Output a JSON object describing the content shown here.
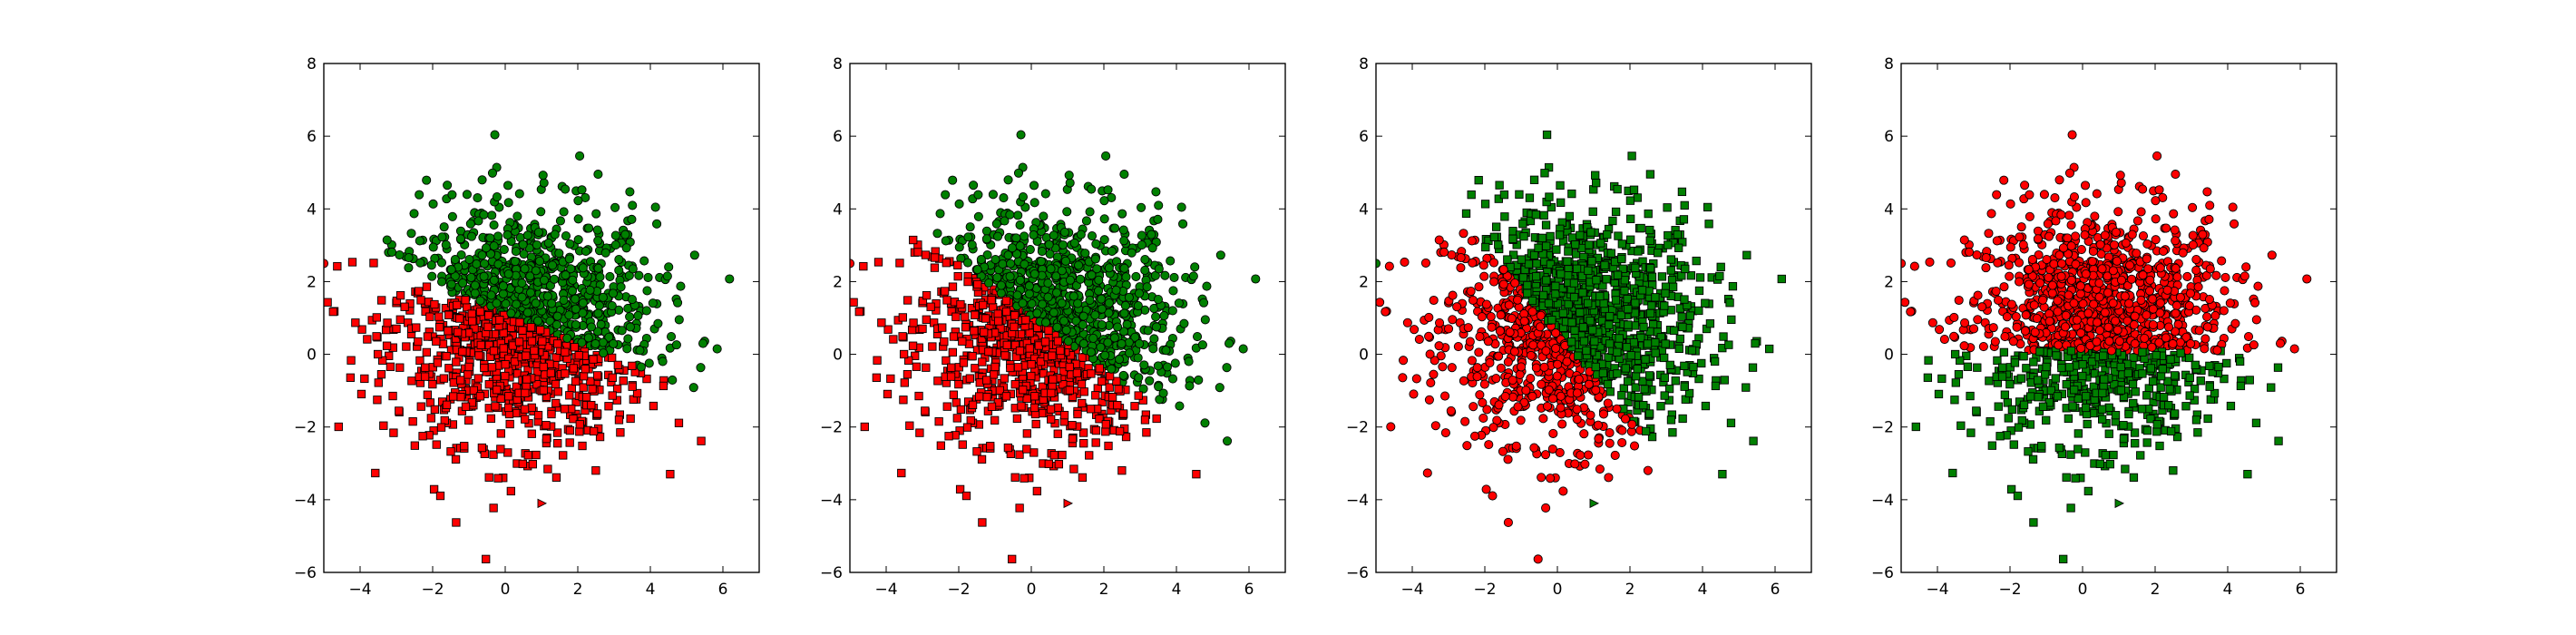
{
  "chart_data": [
    {
      "type": "scatter",
      "title": "",
      "xlabel": "",
      "ylabel": "",
      "xlim": [
        -5,
        7
      ],
      "ylim": [
        -6,
        8
      ],
      "x_ticks": [
        "−4",
        "−2",
        "0",
        "2",
        "4",
        "6"
      ],
      "y_ticks": [
        "−6",
        "−4",
        "−2",
        "0",
        "2",
        "4",
        "6",
        "8"
      ],
      "grid": false,
      "legend": "none",
      "series": [
        {
          "color": "#ff0000",
          "marker": "square",
          "region": "below boundary"
        },
        {
          "color": "#008000",
          "marker": "circle",
          "region": "above boundary"
        }
      ],
      "boundary": {
        "x1": -2.5,
        "y1": 2.1,
        "x2": 3.5,
        "y2": -0.3
      },
      "outliers": [
        {
          "x": -5,
          "y": 2.5,
          "color": "#ff0000",
          "marker": "circle"
        },
        {
          "x": 1.0,
          "y": -4.1,
          "color": "#ff0000",
          "marker": "triangle"
        }
      ],
      "cluster": {
        "center": [
          0.5,
          0.8
        ],
        "spread": [
          1.8,
          1.6
        ]
      }
    },
    {
      "type": "scatter",
      "title": "",
      "xlabel": "",
      "ylabel": "",
      "xlim": [
        -5,
        7
      ],
      "ylim": [
        -6,
        8
      ],
      "x_ticks": [
        "−4",
        "−2",
        "0",
        "2",
        "4",
        "6"
      ],
      "y_ticks": [
        "−6",
        "−4",
        "−2",
        "0",
        "2",
        "4",
        "6",
        "8"
      ],
      "grid": false,
      "legend": "none",
      "series": [
        {
          "color": "#ff0000",
          "marker": "square",
          "region": "below boundary"
        },
        {
          "color": "#008000",
          "marker": "circle",
          "region": "above boundary"
        }
      ],
      "boundary": {
        "x1": -2.0,
        "y1": 2.5,
        "x2": 3.5,
        "y2": -1.5
      },
      "outliers": [
        {
          "x": -5,
          "y": 2.5,
          "color": "#ff0000",
          "marker": "circle"
        },
        {
          "x": 1.0,
          "y": -4.1,
          "color": "#ff0000",
          "marker": "triangle"
        }
      ],
      "cluster": {
        "center": [
          0.5,
          0.8
        ],
        "spread": [
          1.8,
          1.6
        ]
      }
    },
    {
      "type": "scatter",
      "title": "",
      "xlabel": "",
      "ylabel": "",
      "xlim": [
        -5,
        7
      ],
      "ylim": [
        -6,
        8
      ],
      "x_ticks": [
        "−4",
        "−2",
        "0",
        "2",
        "4",
        "6"
      ],
      "y_ticks": [
        "−6",
        "−4",
        "−2",
        "0",
        "2",
        "4",
        "6",
        "8"
      ],
      "grid": false,
      "legend": "none",
      "series": [
        {
          "color": "#008000",
          "marker": "square",
          "region": "left of boundary"
        },
        {
          "color": "#ff0000",
          "marker": "circle",
          "region": "right of boundary"
        }
      ],
      "boundary": {
        "x1": -1.8,
        "y1": 2.7,
        "x2": 2.5,
        "y2": -2.3
      },
      "outliers": [
        {
          "x": -5,
          "y": 2.5,
          "color": "#008000",
          "marker": "circle"
        },
        {
          "x": 1.0,
          "y": -4.1,
          "color": "#008000",
          "marker": "triangle"
        }
      ],
      "cluster": {
        "center": [
          0.5,
          0.8
        ],
        "spread": [
          1.8,
          1.6
        ]
      }
    },
    {
      "type": "scatter",
      "title": "",
      "xlabel": "",
      "ylabel": "",
      "xlim": [
        -5,
        7
      ],
      "ylim": [
        -6,
        8
      ],
      "x_ticks": [
        "−4",
        "−2",
        "0",
        "2",
        "4",
        "6"
      ],
      "y_ticks": [
        "−6",
        "−4",
        "−2",
        "0",
        "2",
        "4",
        "6",
        "8"
      ],
      "grid": false,
      "legend": "none",
      "series": [
        {
          "color": "#008000",
          "marker": "square",
          "region": "below boundary"
        },
        {
          "color": "#ff0000",
          "marker": "circle",
          "region": "above boundary"
        }
      ],
      "boundary": {
        "x1": -4,
        "y1": 0.1,
        "x2": 4,
        "y2": 0.1
      },
      "outliers": [
        {
          "x": -5,
          "y": 2.5,
          "color": "#ff0000",
          "marker": "circle"
        },
        {
          "x": 1.0,
          "y": -4.1,
          "color": "#008000",
          "marker": "triangle"
        }
      ],
      "cluster": {
        "center": [
          0.5,
          0.8
        ],
        "spread": [
          1.8,
          1.6
        ]
      }
    }
  ]
}
